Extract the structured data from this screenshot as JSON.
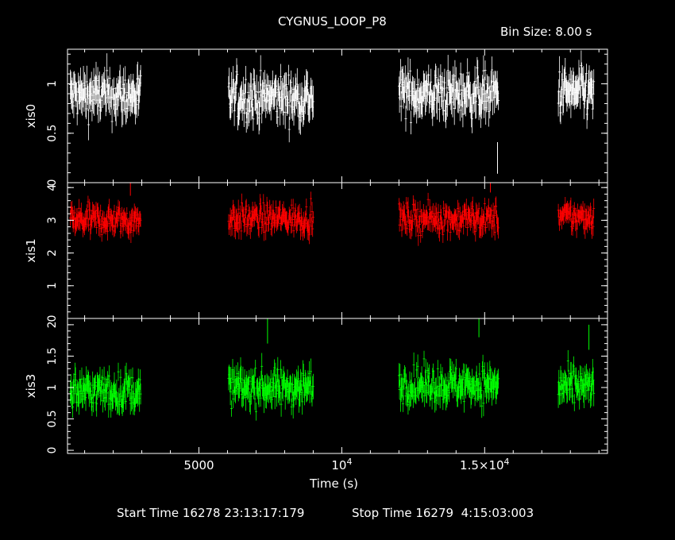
{
  "title": "CYGNUS_LOOP_P8",
  "bin_size": "Bin Size: 8.00 s",
  "xlabel": "Time (s)",
  "start_time": "Start Time 16278 23:13:17:179",
  "stop_time": "Stop Time 16279  4:15:03:003",
  "colors": {
    "xis0": "#ffffff",
    "xis1": "#ff0000",
    "xis3": "#00ff00",
    "frame": "#ffffff",
    "background": "#000000"
  },
  "chart_data": {
    "type": "scatter",
    "xlim": [
      400,
      19300
    ],
    "x_ticks": [
      {
        "value": 5000,
        "label": "5000"
      },
      {
        "value": 10000,
        "label": "10",
        "sup": "4"
      },
      {
        "value": 15000,
        "label": "1.5×10",
        "sup": "4"
      }
    ],
    "segments": [
      [
        500,
        2960
      ],
      [
        6040,
        9000
      ],
      [
        12000,
        15490
      ],
      [
        17580,
        18830
      ]
    ],
    "series": [
      {
        "name": "xis0",
        "ylabel": "xis0",
        "ylim": [
          0,
          1.35
        ],
        "y_ticks": [
          {
            "value": 0,
            "label": "0"
          },
          {
            "value": 0.5,
            "label": "0.5"
          },
          {
            "value": 1,
            "label": "1"
          }
        ],
        "mean": [
          0.88,
          0.86,
          0.9,
          0.91
        ],
        "spread": 0.16,
        "outliers": [
          [
            15450,
            0.25
          ]
        ]
      },
      {
        "name": "xis1",
        "ylabel": "xis1",
        "ylim": [
          0,
          4.15
        ],
        "y_ticks": [
          {
            "value": 0,
            "label": "0"
          },
          {
            "value": 1,
            "label": "1"
          },
          {
            "value": 2,
            "label": "2"
          },
          {
            "value": 3,
            "label": "3"
          },
          {
            "value": 4,
            "label": "4"
          }
        ],
        "mean": [
          3.0,
          3.05,
          3.05,
          3.1
        ],
        "spread": 0.3,
        "outliers": [
          [
            15200,
            4.15
          ],
          [
            2600,
            4.05
          ]
        ]
      },
      {
        "name": "xis3",
        "ylabel": "xis3",
        "ylim": [
          -0.05,
          2.1
        ],
        "y_ticks": [
          {
            "value": 0,
            "label": "0"
          },
          {
            "value": 0.5,
            "label": "0.5"
          },
          {
            "value": 1,
            "label": "1"
          },
          {
            "value": 1.5,
            "label": "1.5"
          },
          {
            "value": 2,
            "label": "2"
          }
        ],
        "mean": [
          0.95,
          1.0,
          1.05,
          1.0
        ],
        "spread": 0.2,
        "outliers": [
          [
            7400,
            1.9
          ],
          [
            14800,
            2.0
          ],
          [
            18650,
            1.8
          ]
        ]
      }
    ]
  }
}
